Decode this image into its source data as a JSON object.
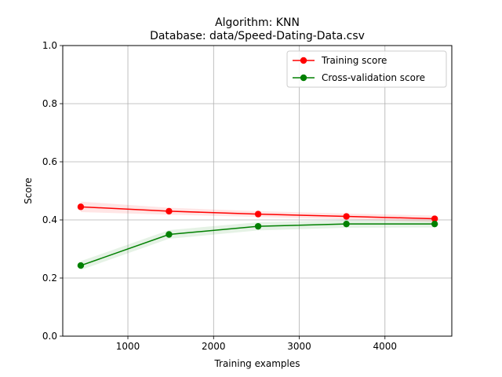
{
  "chart_data": {
    "type": "line",
    "title_line1": "Algorithm: KNN",
    "title_line2": "Database: data/Speed-Dating-Data.csv",
    "xlabel": "Training examples",
    "ylabel": "Score",
    "xlim": [
      240,
      4780
    ],
    "ylim": [
      0.0,
      1.0
    ],
    "x_ticks": [
      1000,
      2000,
      3000,
      4000
    ],
    "y_ticks": [
      0.0,
      0.2,
      0.4,
      0.6,
      0.8,
      1.0
    ],
    "y_tick_labels": [
      "0.0",
      "0.2",
      "0.4",
      "0.6",
      "0.8",
      "1.0"
    ],
    "grid": true,
    "legend_position": "top-right",
    "x": [
      450,
      1480,
      2520,
      3550,
      4580
    ],
    "series": [
      {
        "name": "Training score",
        "color": "#ff0000",
        "band_color": "#ff0000",
        "values": [
          0.445,
          0.43,
          0.42,
          0.412,
          0.404
        ],
        "band_halfwidth": [
          0.018,
          0.012,
          0.01,
          0.01,
          0.011
        ]
      },
      {
        "name": "Cross-validation score",
        "color": "#008000",
        "band_color": "#008000",
        "values": [
          0.243,
          0.35,
          0.378,
          0.386,
          0.386
        ],
        "band_halfwidth": [
          0.015,
          0.015,
          0.014,
          0.013,
          0.012
        ]
      }
    ]
  }
}
